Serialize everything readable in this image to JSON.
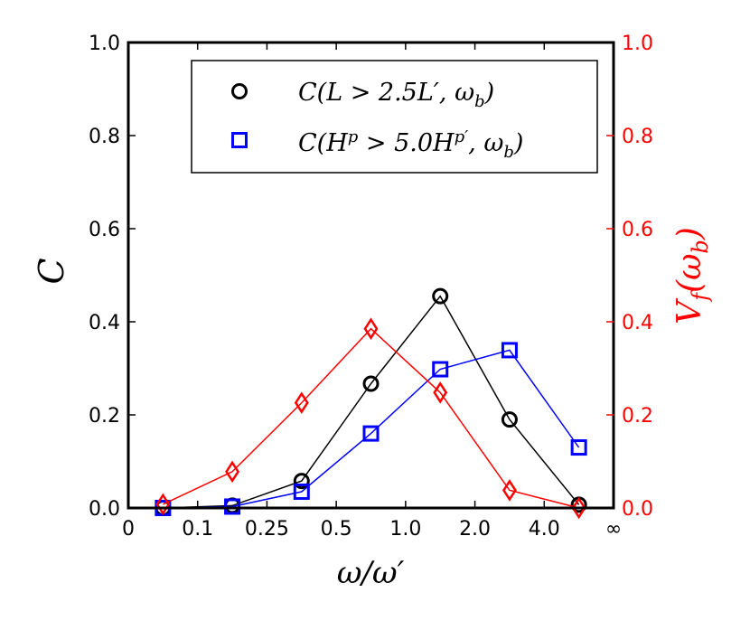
{
  "chart_data": {
    "type": "line",
    "xlabel": "ω/ω′",
    "ylabel_left": "C",
    "ylabel_right": "V_f(ω_b)",
    "x_tick_labels": [
      "0",
      "0.1",
      "0.25",
      "0.5",
      "1.0",
      "2.0",
      "4.0",
      "∞"
    ],
    "y_ticks_left": [
      "0.0",
      "0.2",
      "0.4",
      "0.6",
      "0.8",
      "1.0"
    ],
    "y_ticks_right": [
      "0.0",
      "0.2",
      "0.4",
      "0.6",
      "0.8",
      "1.0"
    ],
    "ylim_left": [
      0,
      1.0
    ],
    "ylim_right": [
      0,
      1.0
    ],
    "grid": false,
    "legend_position": "top-right",
    "series": [
      {
        "name": "C(L > 2.5L′, ω_b)",
        "legend_label": {
          "base": "C(L > 2.5L′, ω",
          "sub": "b",
          "tail": ")"
        },
        "axis": "left",
        "marker": "circle",
        "color": "#000000",
        "x": [
          0.5,
          1.5,
          2.5,
          3.5,
          4.5,
          5.5,
          6.5
        ],
        "y": [
          0.0,
          0.005,
          0.058,
          0.267,
          0.455,
          0.19,
          0.007
        ]
      },
      {
        "name": "C(H^p > 5.0H^p′, ω_b)",
        "legend_label": {
          "base": "C(H",
          "sup1": "p",
          "mid": " > 5.0H",
          "sup2": "p′",
          "mid2": ", ω",
          "sub": "b",
          "tail": ")"
        },
        "axis": "left",
        "marker": "square",
        "color": "#0000ff",
        "x": [
          0.5,
          1.5,
          2.5,
          3.5,
          4.5,
          5.5,
          6.5
        ],
        "y": [
          0.0,
          0.003,
          0.035,
          0.16,
          0.298,
          0.339,
          0.13
        ]
      },
      {
        "name": "V_f(ω_b)",
        "axis": "right",
        "marker": "diamond",
        "color": "#ff0000",
        "x": [
          0.5,
          1.5,
          2.5,
          3.5,
          4.5,
          5.5,
          6.5
        ],
        "y": [
          0.008,
          0.078,
          0.226,
          0.385,
          0.248,
          0.038,
          0.0
        ]
      }
    ]
  }
}
